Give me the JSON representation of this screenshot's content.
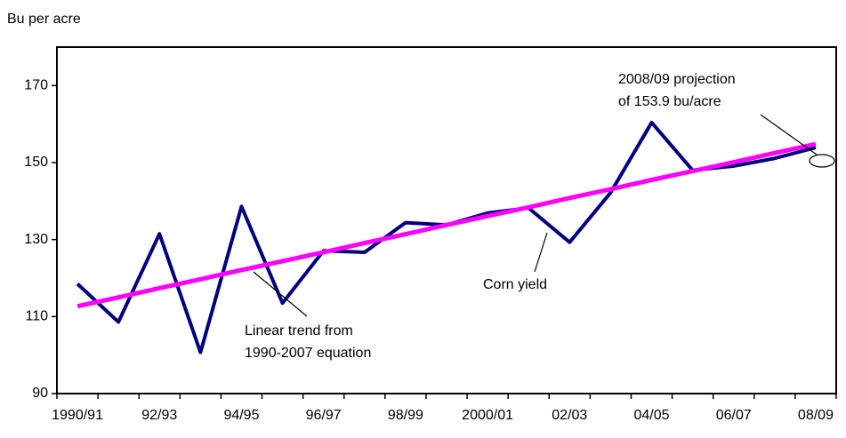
{
  "chart_data": {
    "type": "line",
    "y_label": "Bu per acre",
    "categories": [
      "1990/91",
      null,
      "92/93",
      null,
      "94/95",
      null,
      "96/97",
      null,
      "98/99",
      null,
      "2000/01",
      null,
      "02/03",
      null,
      "04/05",
      null,
      "06/07",
      null,
      "08/09"
    ],
    "series": [
      {
        "name": "Corn yield",
        "color": "#000080",
        "values": [
          118.5,
          108.6,
          131.5,
          100.7,
          138.6,
          113.5,
          127.1,
          126.7,
          134.4,
          133.8,
          136.9,
          138.2,
          129.3,
          142.2,
          160.4,
          148.0,
          149.1,
          151.1,
          153.9
        ]
      },
      {
        "color": "#ff00ff",
        "values": [
          112.7,
          115.0,
          117.4,
          119.7,
          122.1,
          124.4,
          126.7,
          129.1,
          131.4,
          133.8,
          136.1,
          138.4,
          140.8,
          143.1,
          145.5,
          147.8,
          150.1,
          152.5,
          154.8
        ]
      }
    ],
    "annotations": [
      {
        "lines": [
          "2008/09 projection",
          "of 153.9 bu/acre"
        ]
      },
      {
        "lines": [
          "Linear trend from",
          " 1990-2007 equation"
        ]
      }
    ],
    "ylim": [
      90,
      180
    ],
    "yticks": [
      90,
      110,
      130,
      150,
      170
    ],
    "grid": false
  }
}
